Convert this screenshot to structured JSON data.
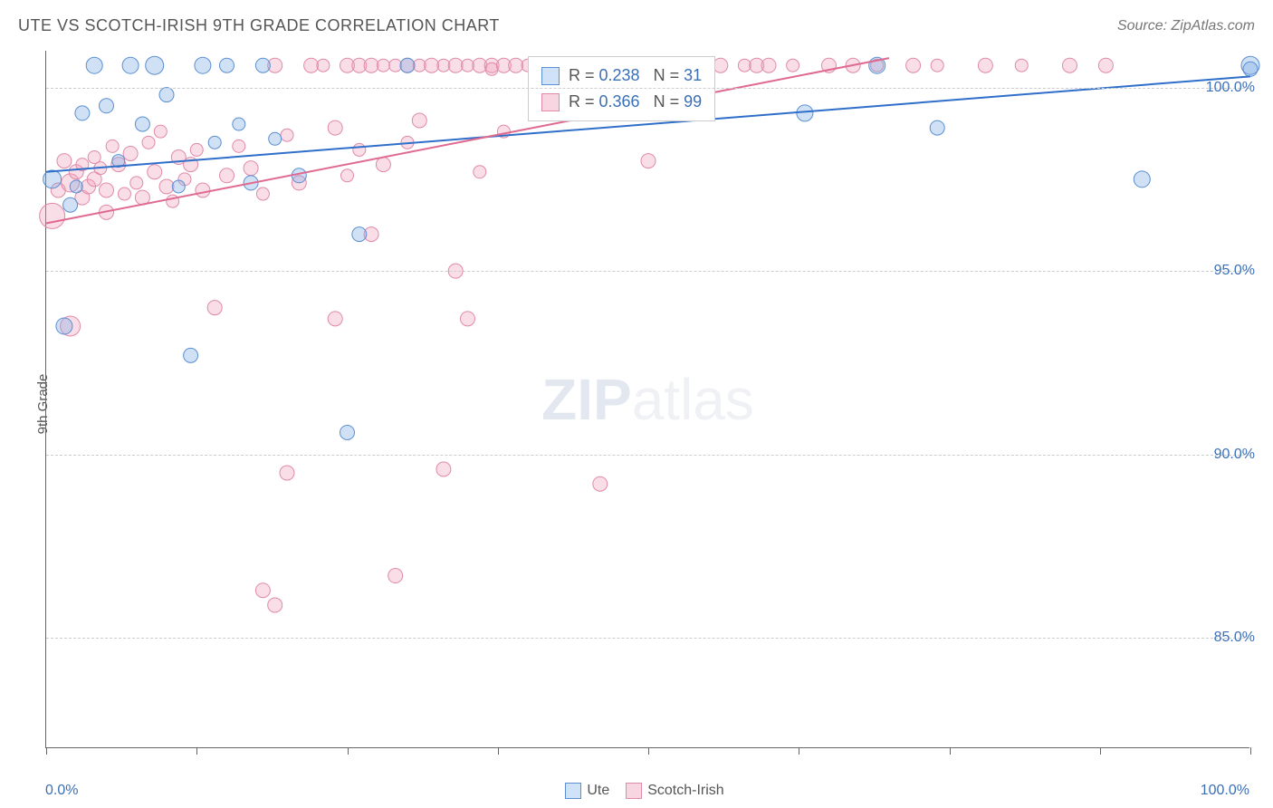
{
  "title": "UTE VS SCOTCH-IRISH 9TH GRADE CORRELATION CHART",
  "source": "Source: ZipAtlas.com",
  "ylabel": "9th Grade",
  "watermark": {
    "bold": "ZIP",
    "light": "atlas"
  },
  "chart": {
    "type": "scatter",
    "xlim": [
      0,
      100
    ],
    "ylim": [
      82,
      101
    ],
    "x_ticks": [
      0,
      12.5,
      25,
      37.5,
      50,
      62.5,
      75,
      87.5,
      100
    ],
    "y_gridlines": [
      85,
      90,
      95,
      100
    ],
    "y_tick_labels": [
      "85.0%",
      "90.0%",
      "95.0%",
      "100.0%"
    ],
    "x_min_label": "0.0%",
    "x_max_label": "100.0%",
    "background_color": "#ffffff",
    "grid_color": "#cccccc",
    "axis_color": "#666666",
    "series": [
      {
        "name": "Ute",
        "color_fill": "rgba(120,170,230,0.35)",
        "color_stroke": "#5b8fd0",
        "swatch_fill": "#cfe2f7",
        "swatch_border": "#5b8fd0",
        "r_default": 8,
        "trend": {
          "x1": 0,
          "y1": 97.7,
          "x2": 100,
          "y2": 100.3,
          "color": "#2f6fc9",
          "width": 2
        },
        "stats": {
          "R": "0.238",
          "N": "31"
        },
        "points": [
          {
            "x": 0.5,
            "y": 97.5,
            "r": 10
          },
          {
            "x": 1.5,
            "y": 93.5,
            "r": 9
          },
          {
            "x": 2,
            "y": 96.8,
            "r": 8
          },
          {
            "x": 2.5,
            "y": 97.3,
            "r": 7
          },
          {
            "x": 3,
            "y": 99.3,
            "r": 8
          },
          {
            "x": 4,
            "y": 100.6,
            "r": 9
          },
          {
            "x": 5,
            "y": 99.5,
            "r": 8
          },
          {
            "x": 6,
            "y": 98.0,
            "r": 7
          },
          {
            "x": 7,
            "y": 100.6,
            "r": 9
          },
          {
            "x": 8,
            "y": 99.0,
            "r": 8
          },
          {
            "x": 9,
            "y": 100.6,
            "r": 10
          },
          {
            "x": 10,
            "y": 99.8,
            "r": 8
          },
          {
            "x": 11,
            "y": 97.3,
            "r": 7
          },
          {
            "x": 12,
            "y": 92.7,
            "r": 8
          },
          {
            "x": 13,
            "y": 100.6,
            "r": 9
          },
          {
            "x": 14,
            "y": 98.5,
            "r": 7
          },
          {
            "x": 15,
            "y": 100.6,
            "r": 8
          },
          {
            "x": 16,
            "y": 99.0,
            "r": 7
          },
          {
            "x": 17,
            "y": 97.4,
            "r": 8
          },
          {
            "x": 18,
            "y": 100.6,
            "r": 8
          },
          {
            "x": 19,
            "y": 98.6,
            "r": 7
          },
          {
            "x": 21,
            "y": 97.6,
            "r": 8
          },
          {
            "x": 25,
            "y": 90.6,
            "r": 8
          },
          {
            "x": 26,
            "y": 96.0,
            "r": 8
          },
          {
            "x": 30,
            "y": 100.6,
            "r": 8
          },
          {
            "x": 63,
            "y": 99.3,
            "r": 9
          },
          {
            "x": 69,
            "y": 100.6,
            "r": 9
          },
          {
            "x": 74,
            "y": 98.9,
            "r": 8
          },
          {
            "x": 91,
            "y": 97.5,
            "r": 9
          },
          {
            "x": 100,
            "y": 100.6,
            "r": 10
          },
          {
            "x": 100,
            "y": 100.5,
            "r": 8
          }
        ]
      },
      {
        "name": "Scotch-Irish",
        "color_fill": "rgba(240,160,185,0.35)",
        "color_stroke": "#e08aa7",
        "swatch_fill": "#f7d6e1",
        "swatch_border": "#e08aa7",
        "r_default": 8,
        "trend": {
          "x1": 0,
          "y1": 96.3,
          "x2": 70,
          "y2": 100.8,
          "color": "#e06a8f",
          "width": 2
        },
        "stats": {
          "R": "0.366",
          "N": "99"
        },
        "points": [
          {
            "x": 0.5,
            "y": 96.5,
            "r": 14
          },
          {
            "x": 1,
            "y": 97.2,
            "r": 8
          },
          {
            "x": 1.5,
            "y": 98.0,
            "r": 8
          },
          {
            "x": 2,
            "y": 97.4,
            "r": 10
          },
          {
            "x": 2,
            "y": 93.5,
            "r": 11
          },
          {
            "x": 2.5,
            "y": 97.7,
            "r": 8
          },
          {
            "x": 3,
            "y": 97.0,
            "r": 8
          },
          {
            "x": 3,
            "y": 97.9,
            "r": 7
          },
          {
            "x": 3.5,
            "y": 97.3,
            "r": 8
          },
          {
            "x": 4,
            "y": 98.1,
            "r": 7
          },
          {
            "x": 4,
            "y": 97.5,
            "r": 8
          },
          {
            "x": 4.5,
            "y": 97.8,
            "r": 7
          },
          {
            "x": 5,
            "y": 97.2,
            "r": 8
          },
          {
            "x": 5,
            "y": 96.6,
            "r": 8
          },
          {
            "x": 5.5,
            "y": 98.4,
            "r": 7
          },
          {
            "x": 6,
            "y": 97.9,
            "r": 8
          },
          {
            "x": 6.5,
            "y": 97.1,
            "r": 7
          },
          {
            "x": 7,
            "y": 98.2,
            "r": 8
          },
          {
            "x": 7.5,
            "y": 97.4,
            "r": 7
          },
          {
            "x": 8,
            "y": 97.0,
            "r": 8
          },
          {
            "x": 8.5,
            "y": 98.5,
            "r": 7
          },
          {
            "x": 9,
            "y": 97.7,
            "r": 8
          },
          {
            "x": 9.5,
            "y": 98.8,
            "r": 7
          },
          {
            "x": 10,
            "y": 97.3,
            "r": 8
          },
          {
            "x": 10.5,
            "y": 96.9,
            "r": 7
          },
          {
            "x": 11,
            "y": 98.1,
            "r": 8
          },
          {
            "x": 11.5,
            "y": 97.5,
            "r": 7
          },
          {
            "x": 12,
            "y": 97.9,
            "r": 8
          },
          {
            "x": 12.5,
            "y": 98.3,
            "r": 7
          },
          {
            "x": 13,
            "y": 97.2,
            "r": 8
          },
          {
            "x": 14,
            "y": 94.0,
            "r": 8
          },
          {
            "x": 15,
            "y": 97.6,
            "r": 8
          },
          {
            "x": 16,
            "y": 98.4,
            "r": 7
          },
          {
            "x": 17,
            "y": 97.8,
            "r": 8
          },
          {
            "x": 18,
            "y": 86.3,
            "r": 8
          },
          {
            "x": 18,
            "y": 97.1,
            "r": 7
          },
          {
            "x": 19,
            "y": 85.9,
            "r": 8
          },
          {
            "x": 19,
            "y": 100.6,
            "r": 8
          },
          {
            "x": 20,
            "y": 89.5,
            "r": 8
          },
          {
            "x": 20,
            "y": 98.7,
            "r": 7
          },
          {
            "x": 21,
            "y": 97.4,
            "r": 8
          },
          {
            "x": 22,
            "y": 100.6,
            "r": 8
          },
          {
            "x": 23,
            "y": 100.6,
            "r": 7
          },
          {
            "x": 24,
            "y": 98.9,
            "r": 8
          },
          {
            "x": 24,
            "y": 93.7,
            "r": 8
          },
          {
            "x": 25,
            "y": 100.6,
            "r": 8
          },
          {
            "x": 25,
            "y": 97.6,
            "r": 7
          },
          {
            "x": 26,
            "y": 100.6,
            "r": 8
          },
          {
            "x": 26,
            "y": 98.3,
            "r": 7
          },
          {
            "x": 27,
            "y": 96.0,
            "r": 8
          },
          {
            "x": 27,
            "y": 100.6,
            "r": 8
          },
          {
            "x": 28,
            "y": 100.6,
            "r": 7
          },
          {
            "x": 28,
            "y": 97.9,
            "r": 8
          },
          {
            "x": 29,
            "y": 86.7,
            "r": 8
          },
          {
            "x": 29,
            "y": 100.6,
            "r": 7
          },
          {
            "x": 30,
            "y": 100.6,
            "r": 8
          },
          {
            "x": 30,
            "y": 98.5,
            "r": 7
          },
          {
            "x": 31,
            "y": 99.1,
            "r": 8
          },
          {
            "x": 31,
            "y": 100.6,
            "r": 7
          },
          {
            "x": 32,
            "y": 100.6,
            "r": 8
          },
          {
            "x": 33,
            "y": 89.6,
            "r": 8
          },
          {
            "x": 33,
            "y": 100.6,
            "r": 7
          },
          {
            "x": 34,
            "y": 100.6,
            "r": 8
          },
          {
            "x": 34,
            "y": 95.0,
            "r": 8
          },
          {
            "x": 35,
            "y": 100.6,
            "r": 7
          },
          {
            "x": 35,
            "y": 93.7,
            "r": 8
          },
          {
            "x": 36,
            "y": 100.6,
            "r": 8
          },
          {
            "x": 36,
            "y": 97.7,
            "r": 7
          },
          {
            "x": 37,
            "y": 100.6,
            "r": 8
          },
          {
            "x": 37,
            "y": 100.5,
            "r": 7
          },
          {
            "x": 38,
            "y": 100.6,
            "r": 8
          },
          {
            "x": 38,
            "y": 98.8,
            "r": 7
          },
          {
            "x": 39,
            "y": 100.6,
            "r": 8
          },
          {
            "x": 40,
            "y": 100.6,
            "r": 7
          },
          {
            "x": 41,
            "y": 100.6,
            "r": 8
          },
          {
            "x": 42,
            "y": 100.6,
            "r": 7
          },
          {
            "x": 43,
            "y": 100.6,
            "r": 8
          },
          {
            "x": 44,
            "y": 100.6,
            "r": 7
          },
          {
            "x": 45,
            "y": 100.6,
            "r": 8
          },
          {
            "x": 46,
            "y": 89.2,
            "r": 8
          },
          {
            "x": 47,
            "y": 100.6,
            "r": 7
          },
          {
            "x": 48,
            "y": 100.6,
            "r": 8
          },
          {
            "x": 50,
            "y": 98.0,
            "r": 8
          },
          {
            "x": 52,
            "y": 100.6,
            "r": 8
          },
          {
            "x": 54,
            "y": 100.6,
            "r": 7
          },
          {
            "x": 56,
            "y": 100.6,
            "r": 8
          },
          {
            "x": 58,
            "y": 100.6,
            "r": 7
          },
          {
            "x": 59,
            "y": 100.6,
            "r": 8
          },
          {
            "x": 60,
            "y": 100.6,
            "r": 8
          },
          {
            "x": 62,
            "y": 100.6,
            "r": 7
          },
          {
            "x": 65,
            "y": 100.6,
            "r": 8
          },
          {
            "x": 67,
            "y": 100.6,
            "r": 8
          },
          {
            "x": 69,
            "y": 100.6,
            "r": 7
          },
          {
            "x": 72,
            "y": 100.6,
            "r": 8
          },
          {
            "x": 74,
            "y": 100.6,
            "r": 7
          },
          {
            "x": 78,
            "y": 100.6,
            "r": 8
          },
          {
            "x": 81,
            "y": 100.6,
            "r": 7
          },
          {
            "x": 85,
            "y": 100.6,
            "r": 8
          },
          {
            "x": 88,
            "y": 100.6,
            "r": 8
          }
        ]
      }
    ]
  },
  "stats_box_labels": {
    "R": "R =",
    "N": "N ="
  },
  "bottom_legend": [
    {
      "label": "Ute",
      "swatch_fill": "#cfe2f7",
      "swatch_border": "#5b8fd0"
    },
    {
      "label": "Scotch-Irish",
      "swatch_fill": "#f7d6e1",
      "swatch_border": "#e08aa7"
    }
  ]
}
